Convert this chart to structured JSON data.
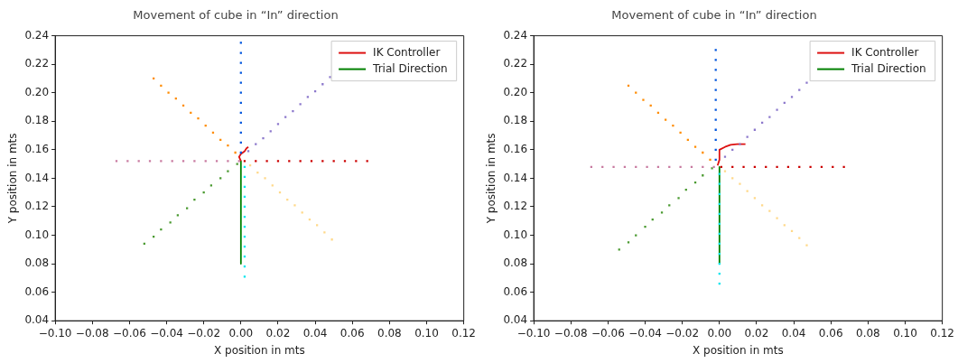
{
  "chart_data": [
    {
      "type": "scatter",
      "title": "Movement of cube in “In” direction",
      "xlabel": "X position in mts",
      "ylabel": "Y position in mts",
      "xlim": [
        -0.1,
        0.12
      ],
      "ylim": [
        0.04,
        0.24
      ],
      "xticks": [
        {
          "value": -0.1,
          "label": "−0.10"
        },
        {
          "value": -0.08,
          "label": "−0.08"
        },
        {
          "value": -0.06,
          "label": "−0.06"
        },
        {
          "value": -0.04,
          "label": "−0.04"
        },
        {
          "value": -0.02,
          "label": "−0.02"
        },
        {
          "value": 0,
          "label": "0.00"
        },
        {
          "value": 0.02,
          "label": "0.02"
        },
        {
          "value": 0.04,
          "label": "0.04"
        },
        {
          "value": 0.06,
          "label": "0.06"
        },
        {
          "value": 0.08,
          "label": "0.08"
        },
        {
          "value": 0.1,
          "label": "0.10"
        },
        {
          "value": 0.12,
          "label": "0.12"
        }
      ],
      "yticks": [
        {
          "value": 0.04,
          "label": "0.04"
        },
        {
          "value": 0.06,
          "label": "0.06"
        },
        {
          "value": 0.08,
          "label": "0.08"
        },
        {
          "value": 0.1,
          "label": "0.10"
        },
        {
          "value": 0.12,
          "label": "0.12"
        },
        {
          "value": 0.14,
          "label": "0.14"
        },
        {
          "value": 0.16,
          "label": "0.16"
        },
        {
          "value": 0.18,
          "label": "0.18"
        },
        {
          "value": 0.2,
          "label": "0.20"
        },
        {
          "value": 0.22,
          "label": "0.22"
        },
        {
          "value": 0.24,
          "label": "0.24"
        }
      ],
      "grid": false,
      "legend": "top right",
      "marker": "square",
      "series": [
        {
          "color": "#0055dd",
          "x": [
            0,
            0,
            0,
            0,
            0,
            0,
            0,
            0,
            0,
            0,
            0,
            0
          ],
          "values": [
            0.158,
            0.165,
            0.172,
            0.179,
            0.186,
            0.193,
            0.2,
            0.207,
            0.214,
            0.221,
            0.228,
            0.235
          ]
        },
        {
          "color": "#cc0000",
          "x": [
            0.002,
            0.008,
            0.014,
            0.02,
            0.026,
            0.032,
            0.038,
            0.044,
            0.05,
            0.056,
            0.062,
            0.068
          ],
          "values": [
            0.152,
            0.152,
            0.152,
            0.152,
            0.152,
            0.152,
            0.152,
            0.152,
            0.152,
            0.152,
            0.152,
            0.152
          ]
        },
        {
          "color": "#c87aa0",
          "x": [
            -0.067,
            -0.061,
            -0.055,
            -0.049,
            -0.043,
            -0.037,
            -0.031,
            -0.025,
            -0.019,
            -0.013,
            -0.007,
            -0.001
          ],
          "values": [
            0.152,
            0.152,
            0.152,
            0.152,
            0.152,
            0.152,
            0.152,
            0.152,
            0.152,
            0.152,
            0.152,
            0.152
          ]
        },
        {
          "color": "#00e5ee",
          "x": [
            0.002,
            0.002,
            0.002,
            0.002,
            0.002,
            0.002,
            0.002,
            0.002,
            0.002,
            0.002,
            0.002,
            0.002
          ],
          "values": [
            0.148,
            0.141,
            0.134,
            0.127,
            0.12,
            0.113,
            0.106,
            0.099,
            0.092,
            0.085,
            0.078,
            0.071
          ]
        },
        {
          "color": "#ff8c00",
          "x": [
            -0.003,
            -0.007,
            -0.011,
            -0.015,
            -0.019,
            -0.023,
            -0.027,
            -0.031,
            -0.035,
            -0.039,
            -0.043,
            -0.047
          ],
          "values": [
            0.158,
            0.163,
            0.167,
            0.172,
            0.177,
            0.182,
            0.186,
            0.191,
            0.196,
            0.2,
            0.205,
            0.21
          ]
        },
        {
          "color": "#8c78cc",
          "x": [
            0.004,
            0.008,
            0.012,
            0.016,
            0.02,
            0.024,
            0.028,
            0.032,
            0.036,
            0.04,
            0.044,
            0.048
          ],
          "values": [
            0.159,
            0.164,
            0.168,
            0.173,
            0.178,
            0.183,
            0.187,
            0.192,
            0.197,
            0.201,
            0.206,
            0.211
          ]
        },
        {
          "color": "#4a9a30",
          "x": [
            -0.002,
            -0.007,
            -0.011,
            -0.016,
            -0.02,
            -0.025,
            -0.029,
            -0.034,
            -0.038,
            -0.043,
            -0.047,
            -0.052
          ],
          "values": [
            0.15,
            0.145,
            0.14,
            0.135,
            0.13,
            0.125,
            0.119,
            0.114,
            0.109,
            0.104,
            0.099,
            0.094
          ]
        },
        {
          "color": "#ffd98a",
          "x": [
            0.005,
            0.009,
            0.013,
            0.017,
            0.021,
            0.025,
            0.029,
            0.033,
            0.037,
            0.041,
            0.045,
            0.049
          ],
          "values": [
            0.149,
            0.144,
            0.14,
            0.135,
            0.13,
            0.125,
            0.121,
            0.116,
            0.111,
            0.107,
            0.102,
            0.097
          ]
        },
        {
          "type": "line",
          "name": "IK Controller",
          "marker": "none",
          "color": "#dd1111",
          "x": [
            0,
            -0.001,
            0,
            0.002,
            0.003,
            0.004
          ],
          "values": [
            0.152,
            0.155,
            0.157,
            0.159,
            0.161,
            0.162
          ]
        },
        {
          "type": "line",
          "name": "Trial Direction",
          "marker": "none",
          "color": "#008000",
          "x": [
            0,
            0
          ],
          "values": [
            0.152,
            0.08
          ]
        }
      ]
    },
    {
      "type": "scatter",
      "title": "Movement of cube in “In” direction",
      "xlabel": "X position in mts",
      "ylabel": "Y position in mts",
      "xlim": [
        -0.1,
        0.12
      ],
      "ylim": [
        0.04,
        0.24
      ],
      "xticks": [
        {
          "value": -0.1,
          "label": "−0.10"
        },
        {
          "value": -0.08,
          "label": "−0.08"
        },
        {
          "value": -0.06,
          "label": "−0.06"
        },
        {
          "value": -0.04,
          "label": "−0.04"
        },
        {
          "value": -0.02,
          "label": "−0.02"
        },
        {
          "value": 0,
          "label": "0.00"
        },
        {
          "value": 0.02,
          "label": "0.02"
        },
        {
          "value": 0.04,
          "label": "0.04"
        },
        {
          "value": 0.06,
          "label": "0.06"
        },
        {
          "value": 0.08,
          "label": "0.08"
        },
        {
          "value": 0.1,
          "label": "0.10"
        },
        {
          "value": 0.12,
          "label": "0.12"
        }
      ],
      "yticks": [
        {
          "value": 0.04,
          "label": "0.04"
        },
        {
          "value": 0.06,
          "label": "0.06"
        },
        {
          "value": 0.08,
          "label": "0.08"
        },
        {
          "value": 0.1,
          "label": "0.10"
        },
        {
          "value": 0.12,
          "label": "0.12"
        },
        {
          "value": 0.14,
          "label": "0.14"
        },
        {
          "value": 0.16,
          "label": "0.16"
        },
        {
          "value": 0.18,
          "label": "0.18"
        },
        {
          "value": 0.2,
          "label": "0.20"
        },
        {
          "value": 0.22,
          "label": "0.22"
        },
        {
          "value": 0.24,
          "label": "0.24"
        }
      ],
      "grid": false,
      "legend": "top right",
      "marker": "square",
      "series": [
        {
          "color": "#0055dd",
          "x": [
            -0.002,
            -0.002,
            -0.002,
            -0.002,
            -0.002,
            -0.002,
            -0.002,
            -0.002,
            -0.002,
            -0.002,
            -0.002,
            -0.002
          ],
          "values": [
            0.153,
            0.16,
            0.167,
            0.174,
            0.181,
            0.188,
            0.195,
            0.202,
            0.209,
            0.216,
            0.223,
            0.23
          ]
        },
        {
          "color": "#cc0000",
          "x": [
            0.001,
            0.007,
            0.013,
            0.019,
            0.025,
            0.031,
            0.037,
            0.043,
            0.049,
            0.055,
            0.061,
            0.067
          ],
          "values": [
            0.148,
            0.148,
            0.148,
            0.148,
            0.148,
            0.148,
            0.148,
            0.148,
            0.148,
            0.148,
            0.148,
            0.148
          ]
        },
        {
          "color": "#c87aa0",
          "x": [
            -0.069,
            -0.063,
            -0.057,
            -0.051,
            -0.045,
            -0.039,
            -0.033,
            -0.027,
            -0.021,
            -0.015,
            -0.009,
            -0.003
          ],
          "values": [
            0.148,
            0.148,
            0.148,
            0.148,
            0.148,
            0.148,
            0.148,
            0.148,
            0.148,
            0.148,
            0.148,
            0.148
          ]
        },
        {
          "color": "#00e5ee",
          "x": [
            0,
            0,
            0,
            0,
            0,
            0,
            0,
            0,
            0,
            0,
            0,
            0
          ],
          "values": [
            0.143,
            0.136,
            0.129,
            0.122,
            0.115,
            0.108,
            0.101,
            0.094,
            0.087,
            0.08,
            0.073,
            0.066
          ]
        },
        {
          "color": "#ff8c00",
          "x": [
            -0.005,
            -0.009,
            -0.013,
            -0.017,
            -0.021,
            -0.025,
            -0.029,
            -0.033,
            -0.037,
            -0.041,
            -0.045,
            -0.049
          ],
          "values": [
            0.153,
            0.158,
            0.162,
            0.167,
            0.172,
            0.177,
            0.181,
            0.186,
            0.191,
            0.195,
            0.2,
            0.205
          ]
        },
        {
          "color": "#8c78cc",
          "x": [
            0.003,
            0.007,
            0.011,
            0.015,
            0.019,
            0.023,
            0.027,
            0.031,
            0.035,
            0.039,
            0.043,
            0.047
          ],
          "values": [
            0.155,
            0.16,
            0.164,
            0.169,
            0.174,
            0.179,
            0.183,
            0.188,
            0.193,
            0.197,
            0.202,
            0.207
          ]
        },
        {
          "color": "#4a9a30",
          "x": [
            -0.004,
            -0.009,
            -0.013,
            -0.018,
            -0.022,
            -0.027,
            -0.031,
            -0.036,
            -0.04,
            -0.045,
            -0.049,
            -0.054
          ],
          "values": [
            0.147,
            0.142,
            0.137,
            0.132,
            0.126,
            0.121,
            0.116,
            0.111,
            0.106,
            0.1,
            0.095,
            0.09
          ]
        },
        {
          "color": "#ffd98a",
          "x": [
            0.003,
            0.007,
            0.011,
            0.015,
            0.019,
            0.023,
            0.027,
            0.031,
            0.035,
            0.039,
            0.043,
            0.047
          ],
          "values": [
            0.145,
            0.14,
            0.136,
            0.131,
            0.126,
            0.121,
            0.117,
            0.112,
            0.107,
            0.103,
            0.098,
            0.093
          ]
        },
        {
          "type": "line",
          "name": "IK Controller",
          "marker": "none",
          "color": "#dd1111",
          "x": [
            -0.001,
            0,
            0,
            0.003,
            0.006,
            0.0095,
            0.014
          ],
          "values": [
            0.149,
            0.153,
            0.16,
            0.162,
            0.1635,
            0.164,
            0.164
          ]
        },
        {
          "type": "line",
          "name": "Trial Direction",
          "marker": "none",
          "color": "#008000",
          "x": [
            0,
            0
          ],
          "values": [
            0.148,
            0.08
          ]
        }
      ]
    }
  ]
}
